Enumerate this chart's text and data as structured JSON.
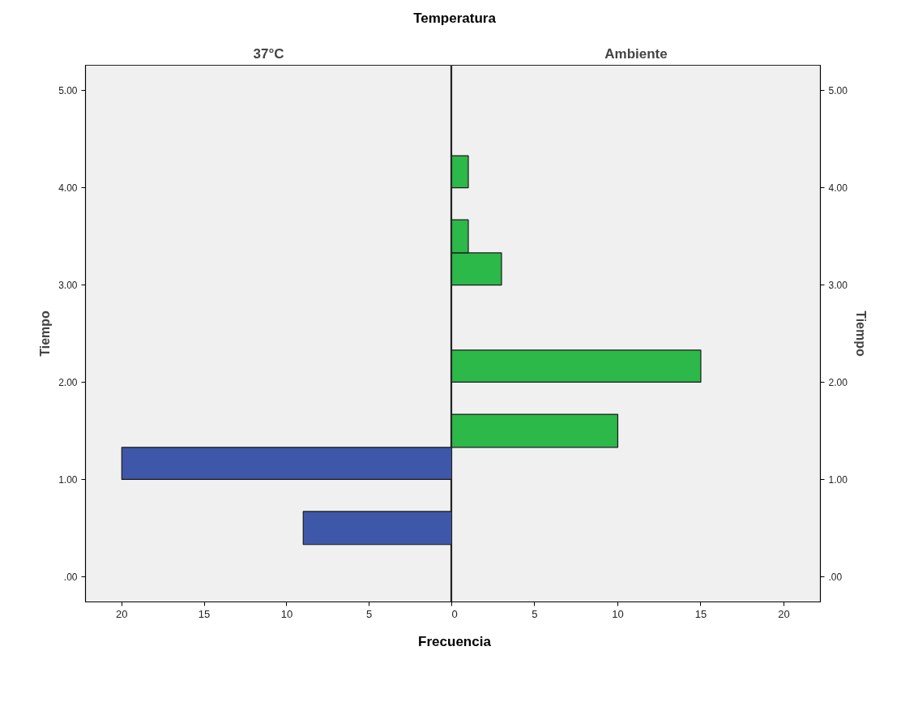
{
  "chart_data": [
    {
      "type": "histogram",
      "orientation": "horizontal",
      "title": "Temperatura",
      "subtitle": "37°C",
      "xlabel": "Frecuencia",
      "ylabel": "Tiempo",
      "bins": [
        0.33,
        0.67,
        1,
        1.33
      ],
      "values": [
        9,
        0,
        20
      ],
      "color": "#3f57a8",
      "xlim": [
        22.2,
        0
      ],
      "xticks": [
        20,
        15,
        10,
        5,
        {
          "value": 0,
          "label": null
        }
      ],
      "ylim": [
        -0.26,
        5.26
      ],
      "yticks": [
        {
          "value": 0,
          "label": ".00"
        },
        {
          "value": 1,
          "label": "1.00"
        },
        {
          "value": 2,
          "label": "2.00"
        },
        {
          "value": 3,
          "label": "3.00"
        },
        {
          "value": 4,
          "label": "4.00"
        },
        {
          "value": 5,
          "label": "5.00"
        }
      ],
      "grid": false
    },
    {
      "type": "histogram",
      "orientation": "horizontal",
      "subtitle": "Ambiente",
      "ylabel": "Tiempo",
      "bins": [
        1.33,
        1.67,
        2,
        2.33,
        3,
        3.33,
        3.67,
        4,
        4.33
      ],
      "values": [
        10,
        0,
        15,
        0,
        3,
        1,
        0,
        1
      ],
      "color": "#2db84a",
      "xlim": [
        0,
        22.2
      ],
      "xticks": [
        0,
        5,
        10,
        15,
        20
      ],
      "ylim": [
        -0.26,
        5.26
      ],
      "yticks": [
        {
          "value": 0,
          "label": ".00"
        },
        {
          "value": 1,
          "label": "1.00"
        },
        {
          "value": 2,
          "label": "2.00"
        },
        {
          "value": 3,
          "label": "3.00"
        },
        {
          "value": 4,
          "label": "4.00"
        },
        {
          "value": 5,
          "label": "5.00"
        }
      ],
      "grid": false
    }
  ]
}
